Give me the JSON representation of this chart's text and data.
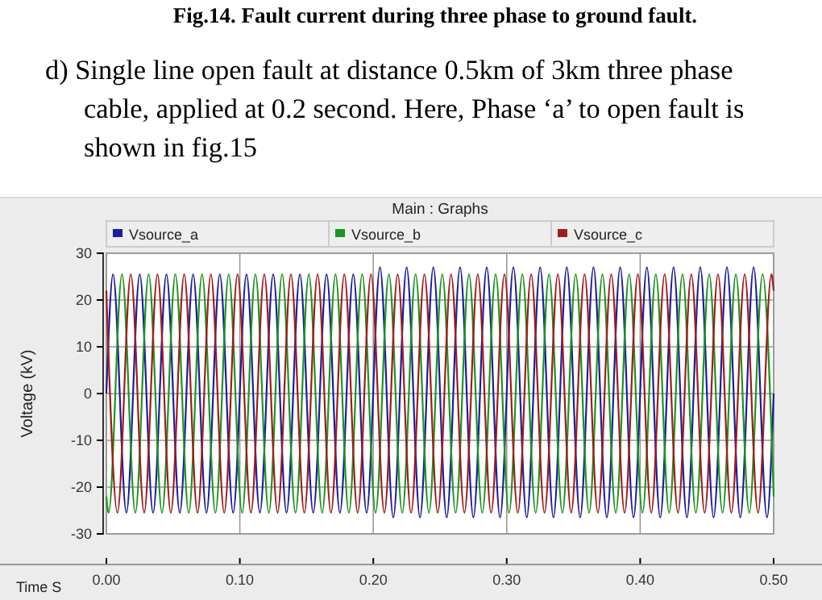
{
  "chart_data": {
    "type": "line",
    "title": "Main : Graphs",
    "xlabel": "Time S",
    "ylabel": "Voltage (kV)",
    "annotations": [
      "Fig.14. Fault current during three phase to ground fault.",
      "d) Single line open fault at distance 0.5km of 3km three phase cable, applied at 0.2 second. Here, Phase ‘a’ to open fault is shown in fig.15"
    ],
    "xlim": [
      0,
      0.5
    ],
    "ylim": [
      -30,
      30
    ],
    "xticks": [
      {
        "value": 0,
        "label": "0.00"
      },
      {
        "value": 0.1,
        "label": "0.10"
      },
      {
        "value": 0.2,
        "label": "0.20"
      },
      {
        "value": 0.3,
        "label": "0.30"
      },
      {
        "value": 0.4,
        "label": "0.40"
      },
      {
        "value": 0.5,
        "label": "0.50"
      }
    ],
    "yticks": [
      -30,
      -20,
      -10,
      0,
      10,
      20,
      30
    ],
    "grid": true,
    "legend": "top",
    "line_style": "solid",
    "marker": "none",
    "series": [
      {
        "name": "Vsource_a",
        "color": "#1c1ca0",
        "x": [
          0,
          0.005,
          0.015,
          0.025,
          0.035,
          0.045,
          0.055,
          0.065,
          0.075,
          0.085,
          0.095,
          0.105,
          0.115,
          0.125,
          0.135,
          0.145,
          0.155,
          0.165,
          0.175,
          0.185,
          0.195,
          0.205,
          0.215,
          0.225,
          0.235,
          0.245,
          0.255,
          0.265,
          0.275,
          0.285,
          0.295,
          0.305,
          0.315,
          0.325,
          0.335,
          0.345,
          0.355,
          0.365,
          0.375,
          0.385,
          0.395,
          0.405,
          0.415,
          0.425,
          0.435,
          0.445,
          0.455,
          0.465,
          0.475,
          0.485,
          0.495,
          0.5
        ],
        "values": [
          0,
          25.5,
          -25.5,
          25.5,
          -25.5,
          25.5,
          -25.5,
          25.5,
          -25.5,
          25.5,
          -25.5,
          25.5,
          -25.5,
          25.5,
          -25.5,
          25.5,
          -25.5,
          25.5,
          -25.5,
          25.5,
          -25.5,
          27,
          -26.5,
          27,
          -26.5,
          27,
          -26.5,
          27,
          -26.5,
          27,
          -26.5,
          27,
          -26.5,
          27,
          -26.5,
          27,
          -26.5,
          27,
          -26.5,
          27,
          -26.5,
          27,
          -26.5,
          27,
          -26.5,
          27,
          -26.5,
          27,
          -26.5,
          27,
          -26.5,
          0
        ]
      },
      {
        "name": "Vsource_b",
        "color": "#1c961c",
        "x": [
          0,
          0.0017,
          0.0117,
          0.0217,
          0.0317,
          0.0417,
          0.0517,
          0.0617,
          0.0717,
          0.0817,
          0.0917,
          0.1017,
          0.1117,
          0.1217,
          0.1317,
          0.1417,
          0.1517,
          0.1617,
          0.1717,
          0.1817,
          0.1917,
          0.2017,
          0.2117,
          0.2217,
          0.2317,
          0.2417,
          0.2517,
          0.2617,
          0.2717,
          0.2817,
          0.2917,
          0.3017,
          0.3117,
          0.3217,
          0.3317,
          0.3417,
          0.3517,
          0.3617,
          0.3717,
          0.3817,
          0.3917,
          0.4017,
          0.4117,
          0.4217,
          0.4317,
          0.4417,
          0.4517,
          0.4617,
          0.4717,
          0.4817,
          0.4917,
          0.5
        ],
        "values": [
          -22,
          -25.5,
          25.5,
          -25.5,
          25.5,
          -25.5,
          25.5,
          -25.5,
          25.5,
          -25.5,
          25.5,
          -25.5,
          25.5,
          -25.5,
          25.5,
          -25.5,
          25.5,
          -25.5,
          25.5,
          -25.5,
          25.5,
          -25.5,
          25.5,
          -25.5,
          25.5,
          -25.5,
          25.5,
          -25.5,
          25.5,
          -25.5,
          25.5,
          -25.5,
          25.5,
          -25.5,
          25.5,
          -25.5,
          25.5,
          -25.5,
          25.5,
          -25.5,
          25.5,
          -25.5,
          25.5,
          -25.5,
          25.5,
          -25.5,
          25.5,
          -25.5,
          25.5,
          -25.5,
          25.5,
          -22
        ]
      },
      {
        "name": "Vsource_c",
        "color": "#a01c1c",
        "x": [
          0,
          0.0083,
          0.0183,
          0.0283,
          0.0383,
          0.0483,
          0.0583,
          0.0683,
          0.0783,
          0.0883,
          0.0983,
          0.1083,
          0.1183,
          0.1283,
          0.1383,
          0.1483,
          0.1583,
          0.1683,
          0.1783,
          0.1883,
          0.1983,
          0.2083,
          0.2183,
          0.2283,
          0.2383,
          0.2483,
          0.2583,
          0.2683,
          0.2783,
          0.2883,
          0.2983,
          0.3083,
          0.3183,
          0.3283,
          0.3383,
          0.3483,
          0.3583,
          0.3683,
          0.3783,
          0.3883,
          0.3983,
          0.4083,
          0.4183,
          0.4283,
          0.4383,
          0.4483,
          0.4583,
          0.4683,
          0.4783,
          0.4883,
          0.4983,
          0.5
        ],
        "values": [
          22,
          -25.5,
          25.5,
          -25.5,
          25.5,
          -25.5,
          25.5,
          -25.5,
          25.5,
          -25.5,
          25.5,
          -25.5,
          25.5,
          -25.5,
          25.5,
          -25.5,
          25.5,
          -25.5,
          25.5,
          -25.5,
          25.5,
          -25.5,
          25.5,
          -25.5,
          25.5,
          -25.5,
          25.5,
          -25.5,
          25.5,
          -25.5,
          25.5,
          -25.5,
          25.5,
          -25.5,
          25.5,
          -25.5,
          25.5,
          -25.5,
          25.5,
          -25.5,
          25.5,
          -25.5,
          25.5,
          -25.5,
          25.5,
          -25.5,
          25.5,
          -25.5,
          25.5,
          -25.5,
          25.5,
          22
        ]
      }
    ]
  }
}
